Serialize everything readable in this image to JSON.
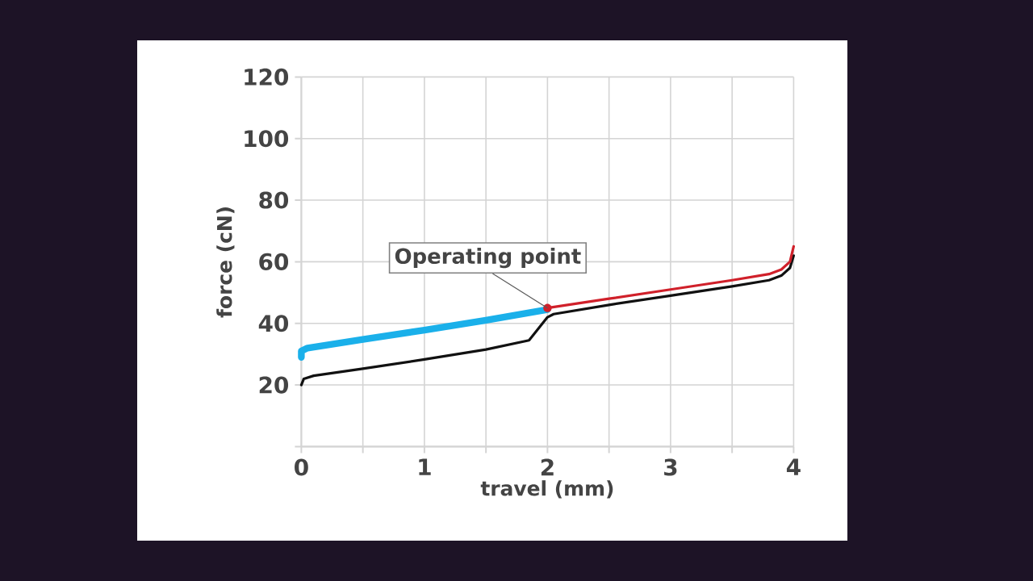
{
  "chart_data": {
    "type": "line",
    "xlabel": "travel (mm)",
    "ylabel": "force (cN)",
    "xlim": [
      0,
      4
    ],
    "ylim": [
      0,
      120
    ],
    "xticks": [
      0,
      {
        "value": 0.5,
        "label": null
      },
      1,
      {
        "value": 1.5,
        "label": null
      },
      2,
      {
        "value": 2.5,
        "label": null
      },
      3,
      {
        "value": 3.5,
        "label": null
      },
      4
    ],
    "yticks": [
      {
        "value": 0,
        "label": null
      },
      20,
      40,
      60,
      80,
      100,
      120
    ],
    "grid": true,
    "series": [
      {
        "color": "#111111",
        "x": [
          0,
          0.02,
          0.1,
          0.5,
          1,
          1.5,
          1.85,
          2.0,
          2.05,
          2.5,
          3,
          3.5,
          3.8,
          3.9,
          3.97,
          4
        ],
        "values": [
          20,
          22,
          23,
          25.3,
          28.3,
          31.5,
          34.5,
          42,
          43,
          46,
          49,
          52,
          54,
          55.5,
          58,
          62
        ]
      },
      {
        "color": "#1ab0ea",
        "x": [
          0,
          0,
          0.05,
          0.5,
          1,
          1.5,
          2
        ],
        "values": [
          29,
          31,
          32,
          34.8,
          37.8,
          41,
          44.5
        ]
      },
      {
        "color": "#d0202a",
        "x": [
          2,
          2.5,
          3,
          3.5,
          3.8,
          3.9,
          3.97,
          4
        ],
        "values": [
          45,
          48,
          51,
          54,
          56,
          57.5,
          60,
          65
        ]
      }
    ],
    "annotations": [
      {
        "text": "Operating point",
        "x": 2,
        "y": 45
      }
    ]
  }
}
